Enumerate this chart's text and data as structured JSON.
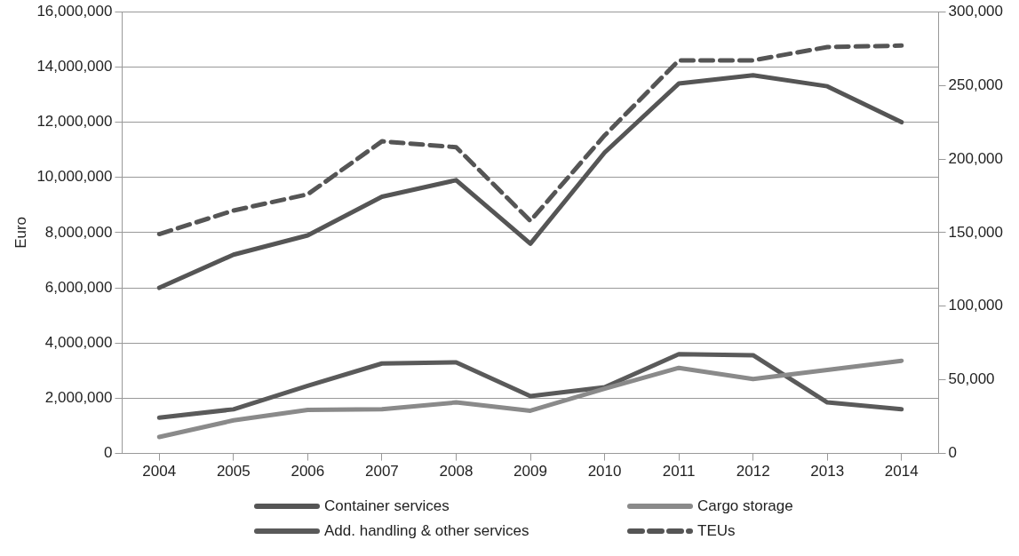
{
  "chart_data": {
    "type": "line",
    "ylabel": "Euro",
    "categories": [
      "2004",
      "2005",
      "2006",
      "2007",
      "2008",
      "2009",
      "2010",
      "2011",
      "2012",
      "2013",
      "2014"
    ],
    "series": [
      {
        "name": "Container services",
        "color": "#555555",
        "values": [
          6000000,
          7200000,
          7900000,
          9300000,
          9900000,
          7600000,
          10900000,
          13400000,
          13700000,
          13300000,
          12000000
        ]
      },
      {
        "name": "Cargo storage",
        "color": "#8a8a8a",
        "values": [
          600000,
          1200000,
          1580000,
          1600000,
          1850000,
          1550000,
          2350000,
          3100000,
          2700000,
          3030000,
          3360000
        ]
      },
      {
        "name": "Add. handling & other services",
        "color": "#5a5a5a",
        "values": [
          1300000,
          1600000,
          2450000,
          3260000,
          3300000,
          2080000,
          2400000,
          3600000,
          3560000,
          1850000,
          1600000
        ]
      },
      {
        "name": "TEUs",
        "color": "#555555",
        "axis": "y2",
        "line_style": "dashed",
        "values": [
          149000,
          165000,
          176000,
          212000,
          208000,
          158000,
          216000,
          267000,
          267000,
          276000,
          277000
        ]
      }
    ],
    "ylim": [
      0,
      16000000
    ],
    "yticks": [
      0,
      {
        "value": 2000000,
        "label": "2,000,000"
      },
      {
        "value": 4000000,
        "label": "4,000,000"
      },
      {
        "value": 6000000,
        "label": "6,000,000"
      },
      {
        "value": 8000000,
        "label": "8,000,000"
      },
      {
        "value": 10000000,
        "label": "10,000,000"
      },
      {
        "value": 12000000,
        "label": "12,000,000"
      },
      {
        "value": 14000000,
        "label": "14,000,000"
      },
      {
        "value": 16000000,
        "label": "16,000,000"
      }
    ],
    "y2lim": [
      0,
      300000
    ],
    "y2ticks": [
      0,
      {
        "value": 50000,
        "label": "50,000"
      },
      {
        "value": 100000,
        "label": "100,000"
      },
      {
        "value": 150000,
        "label": "150,000"
      },
      {
        "value": 200000,
        "label": "200,000"
      },
      {
        "value": 250000,
        "label": "250,000"
      },
      {
        "value": 300000,
        "label": "300,000"
      }
    ],
    "grid": "y",
    "legend": "bottom",
    "marker": "none",
    "line_style": "solid"
  }
}
